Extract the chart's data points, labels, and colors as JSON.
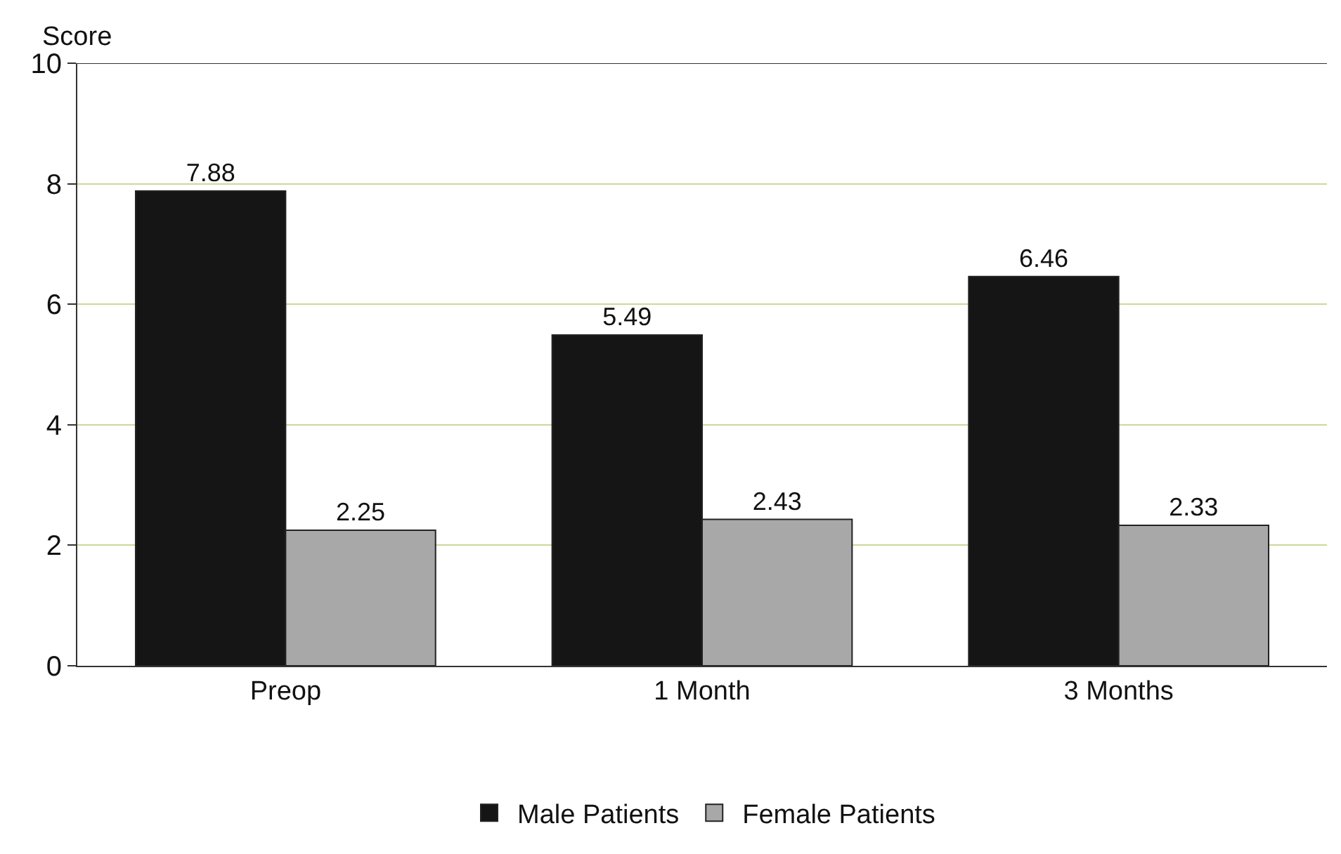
{
  "chart_data": {
    "type": "bar",
    "ylabel": "Score",
    "categories": [
      "Preop",
      "1 Month",
      "3 Months"
    ],
    "series": [
      {
        "name": "Male Patients",
        "color": "#151515",
        "values": [
          7.88,
          5.49,
          6.46
        ]
      },
      {
        "name": "Female Patients",
        "color": "#a8a8a8",
        "values": [
          2.25,
          2.43,
          2.33
        ]
      }
    ],
    "ylim": [
      0,
      10
    ],
    "yticks": [
      0,
      2,
      4,
      6,
      8,
      10
    ],
    "grid": "y",
    "legend": "bottom",
    "data_labels": true
  }
}
